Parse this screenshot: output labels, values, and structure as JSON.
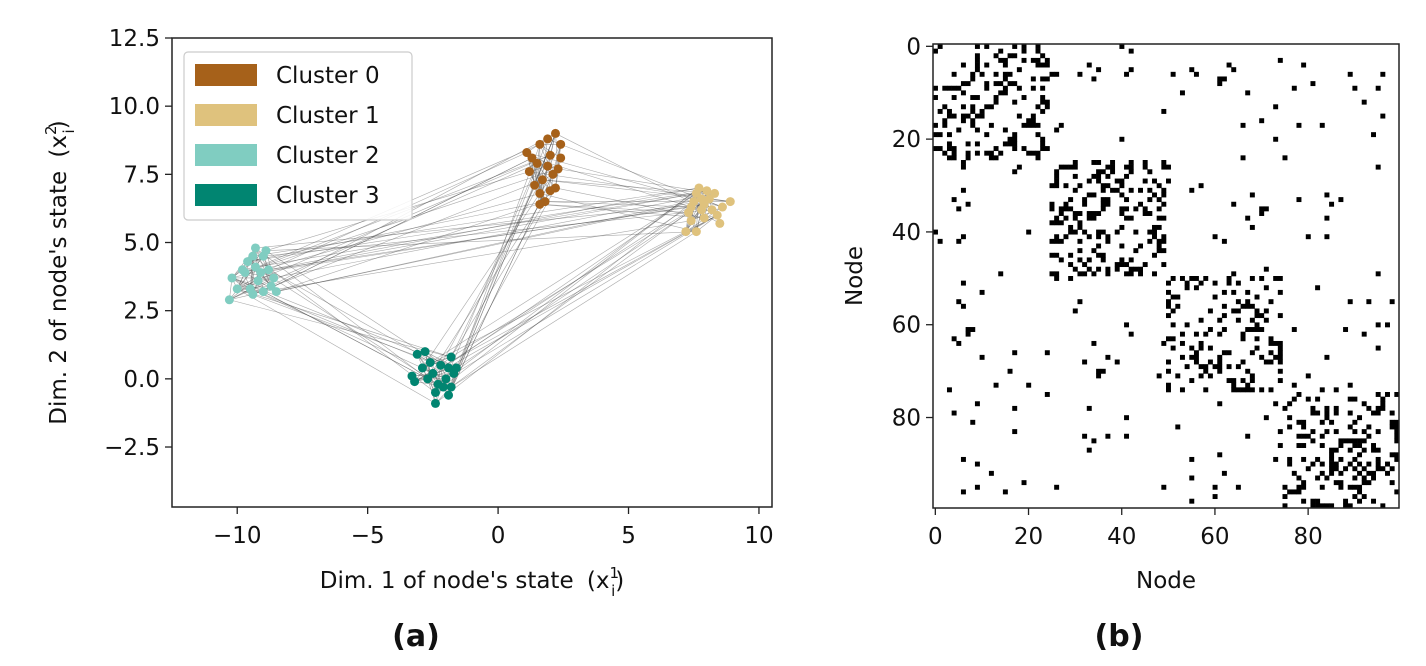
{
  "chart_data": [
    {
      "type": "scatter",
      "panel_label": "(a)",
      "xlabel": "Dim. 1 of node's state",
      "xlabel_symbol": "(x",
      "xlabel_sub": "i",
      "xlabel_sup": "1",
      "ylabel": "Dim. 2 of node's state",
      "ylabel_symbol": "(x",
      "ylabel_sub": "i",
      "ylabel_sup": "2",
      "xlim": [
        -12.5,
        10.5
      ],
      "ylim": [
        -4.7,
        12.5
      ],
      "xticks": [
        -10,
        -5,
        0,
        5,
        10
      ],
      "xtick_labels": [
        "−10",
        "−5",
        "0",
        "5",
        "10"
      ],
      "yticks": [
        -2.5,
        0.0,
        2.5,
        5.0,
        7.5,
        10.0,
        12.5
      ],
      "ytick_labels": [
        "−2.5",
        "0.0",
        "2.5",
        "5.0",
        "7.5",
        "10.0",
        "12.5"
      ],
      "grid": false,
      "legend_position": "top-left",
      "edges": "gray lines connect nodes within and across clusters",
      "series": [
        {
          "name": "Cluster 0",
          "color": "#a6611a",
          "points": [
            [
              1.3,
              8.1
            ],
            [
              1.6,
              8.6
            ],
            [
              1.9,
              8.8
            ],
            [
              2.2,
              9.0
            ],
            [
              2.4,
              8.6
            ],
            [
              1.2,
              7.6
            ],
            [
              1.5,
              7.9
            ],
            [
              2.0,
              8.2
            ],
            [
              2.3,
              7.7
            ],
            [
              1.4,
              7.1
            ],
            [
              1.7,
              7.3
            ],
            [
              2.1,
              7.5
            ],
            [
              1.6,
              6.8
            ],
            [
              2.0,
              6.9
            ],
            [
              1.8,
              6.5
            ],
            [
              1.6,
              6.4
            ],
            [
              2.2,
              7.0
            ],
            [
              1.1,
              8.3
            ],
            [
              1.9,
              7.8
            ],
            [
              2.4,
              8.1
            ]
          ]
        },
        {
          "name": "Cluster 1",
          "color": "#dfc27d",
          "points": [
            [
              7.2,
              5.4
            ],
            [
              7.6,
              5.4
            ],
            [
              7.4,
              5.8
            ],
            [
              7.8,
              6.2
            ],
            [
              8.1,
              6.6
            ],
            [
              8.4,
              6.0
            ],
            [
              8.9,
              6.5
            ],
            [
              7.5,
              6.5
            ],
            [
              7.7,
              7.0
            ],
            [
              8.0,
              6.9
            ],
            [
              7.9,
              6.4
            ],
            [
              8.5,
              5.7
            ],
            [
              7.3,
              6.1
            ],
            [
              8.2,
              6.2
            ],
            [
              7.6,
              6.8
            ],
            [
              8.3,
              6.8
            ],
            [
              7.4,
              6.3
            ],
            [
              7.9,
              5.9
            ],
            [
              8.6,
              6.3
            ],
            [
              7.8,
              6.6
            ]
          ]
        },
        {
          "name": "Cluster 2",
          "color": "#80cdc1",
          "points": [
            [
              -10.3,
              2.9
            ],
            [
              -10.2,
              3.7
            ],
            [
              -10.0,
              3.3
            ],
            [
              -9.7,
              3.9
            ],
            [
              -9.6,
              4.3
            ],
            [
              -9.4,
              4.5
            ],
            [
              -9.3,
              4.8
            ],
            [
              -9.0,
              4.5
            ],
            [
              -8.9,
              4.7
            ],
            [
              -8.8,
              4.0
            ],
            [
              -9.1,
              3.9
            ],
            [
              -9.2,
              3.6
            ],
            [
              -8.7,
              3.4
            ],
            [
              -9.4,
              3.1
            ],
            [
              -9.5,
              3.3
            ],
            [
              -9.0,
              3.2
            ],
            [
              -8.6,
              3.7
            ],
            [
              -9.8,
              4.0
            ],
            [
              -8.5,
              3.2
            ],
            [
              -9.3,
              4.1
            ]
          ]
        },
        {
          "name": "Cluster 3",
          "color": "#018571",
          "points": [
            [
              -3.3,
              0.1
            ],
            [
              -3.1,
              0.9
            ],
            [
              -2.8,
              1.0
            ],
            [
              -2.6,
              0.6
            ],
            [
              -2.5,
              0.2
            ],
            [
              -2.3,
              -0.2
            ],
            [
              -2.4,
              -0.5
            ],
            [
              -2.4,
              -0.9
            ],
            [
              -2.0,
              0.0
            ],
            [
              -1.8,
              0.8
            ],
            [
              -1.9,
              0.4
            ],
            [
              -1.7,
              0.2
            ],
            [
              -1.6,
              0.4
            ],
            [
              -2.1,
              -0.3
            ],
            [
              -1.9,
              -0.6
            ],
            [
              -3.2,
              -0.1
            ],
            [
              -2.9,
              0.4
            ],
            [
              -2.7,
              0.0
            ],
            [
              -2.2,
              0.5
            ],
            [
              -1.8,
              -0.3
            ]
          ]
        }
      ]
    },
    {
      "type": "heatmap",
      "panel_label": "(b)",
      "xlabel": "Node",
      "ylabel": "Node",
      "xticks": [
        0,
        20,
        40,
        60,
        80
      ],
      "xtick_labels": [
        "0",
        "20",
        "40",
        "60",
        "80"
      ],
      "yticks": [
        0,
        20,
        40,
        60,
        80
      ],
      "ytick_labels": [
        "0",
        "20",
        "40",
        "60",
        "80"
      ],
      "size": 100,
      "blocks": [
        [
          0,
          25
        ],
        [
          25,
          50
        ],
        [
          50,
          75
        ],
        [
          75,
          100
        ]
      ],
      "colors": {
        "on": "#000000",
        "off": "#ffffff"
      },
      "description_values": "binary adjacency matrix with dense diagonal blocks per cluster"
    }
  ]
}
